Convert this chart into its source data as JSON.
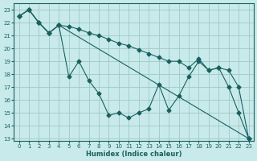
{
  "xlabel": "Humidex (Indice chaleur)",
  "bg_color": "#c8eaea",
  "grid_color": "#a0c8c8",
  "line_color": "#1a6060",
  "xlim": [
    -0.5,
    23.5
  ],
  "ylim": [
    12.8,
    23.5
  ],
  "yticks": [
    13,
    14,
    15,
    16,
    17,
    18,
    19,
    20,
    21,
    22,
    23
  ],
  "xticks": [
    0,
    1,
    2,
    3,
    4,
    5,
    6,
    7,
    8,
    9,
    10,
    11,
    12,
    13,
    14,
    15,
    16,
    17,
    18,
    19,
    20,
    21,
    22,
    23
  ],
  "line1_x": [
    0,
    1,
    2,
    3,
    4,
    23
  ],
  "line1_y": [
    22.5,
    23.0,
    22.0,
    21.2,
    21.8,
    13.0
  ],
  "line2_x": [
    0,
    1,
    2,
    3,
    4,
    5,
    6,
    7,
    8,
    9,
    10,
    11,
    12,
    13,
    14,
    15,
    16,
    17,
    18,
    19,
    20,
    21,
    22,
    23
  ],
  "line2_y": [
    22.5,
    23.0,
    22.0,
    21.2,
    21.8,
    21.7,
    21.5,
    21.2,
    21.0,
    20.7,
    20.4,
    20.2,
    19.9,
    19.6,
    19.3,
    19.0,
    19.0,
    18.5,
    19.2,
    18.3,
    18.5,
    18.3,
    17.0,
    13.0
  ],
  "line3_x": [
    0,
    1,
    2,
    3,
    4,
    5,
    6,
    7,
    8,
    9,
    10,
    11,
    12,
    13,
    14,
    15,
    16,
    17,
    18,
    19,
    20,
    21,
    22,
    23
  ],
  "line3_y": [
    22.5,
    23.0,
    22.0,
    21.2,
    21.8,
    17.8,
    19.0,
    17.5,
    16.5,
    14.8,
    15.0,
    14.6,
    15.0,
    15.3,
    17.2,
    15.2,
    16.3,
    17.8,
    19.0,
    18.3,
    18.5,
    17.0,
    15.0,
    13.0
  ],
  "marker": "D",
  "marker_size": 2.5,
  "line_width": 0.8
}
